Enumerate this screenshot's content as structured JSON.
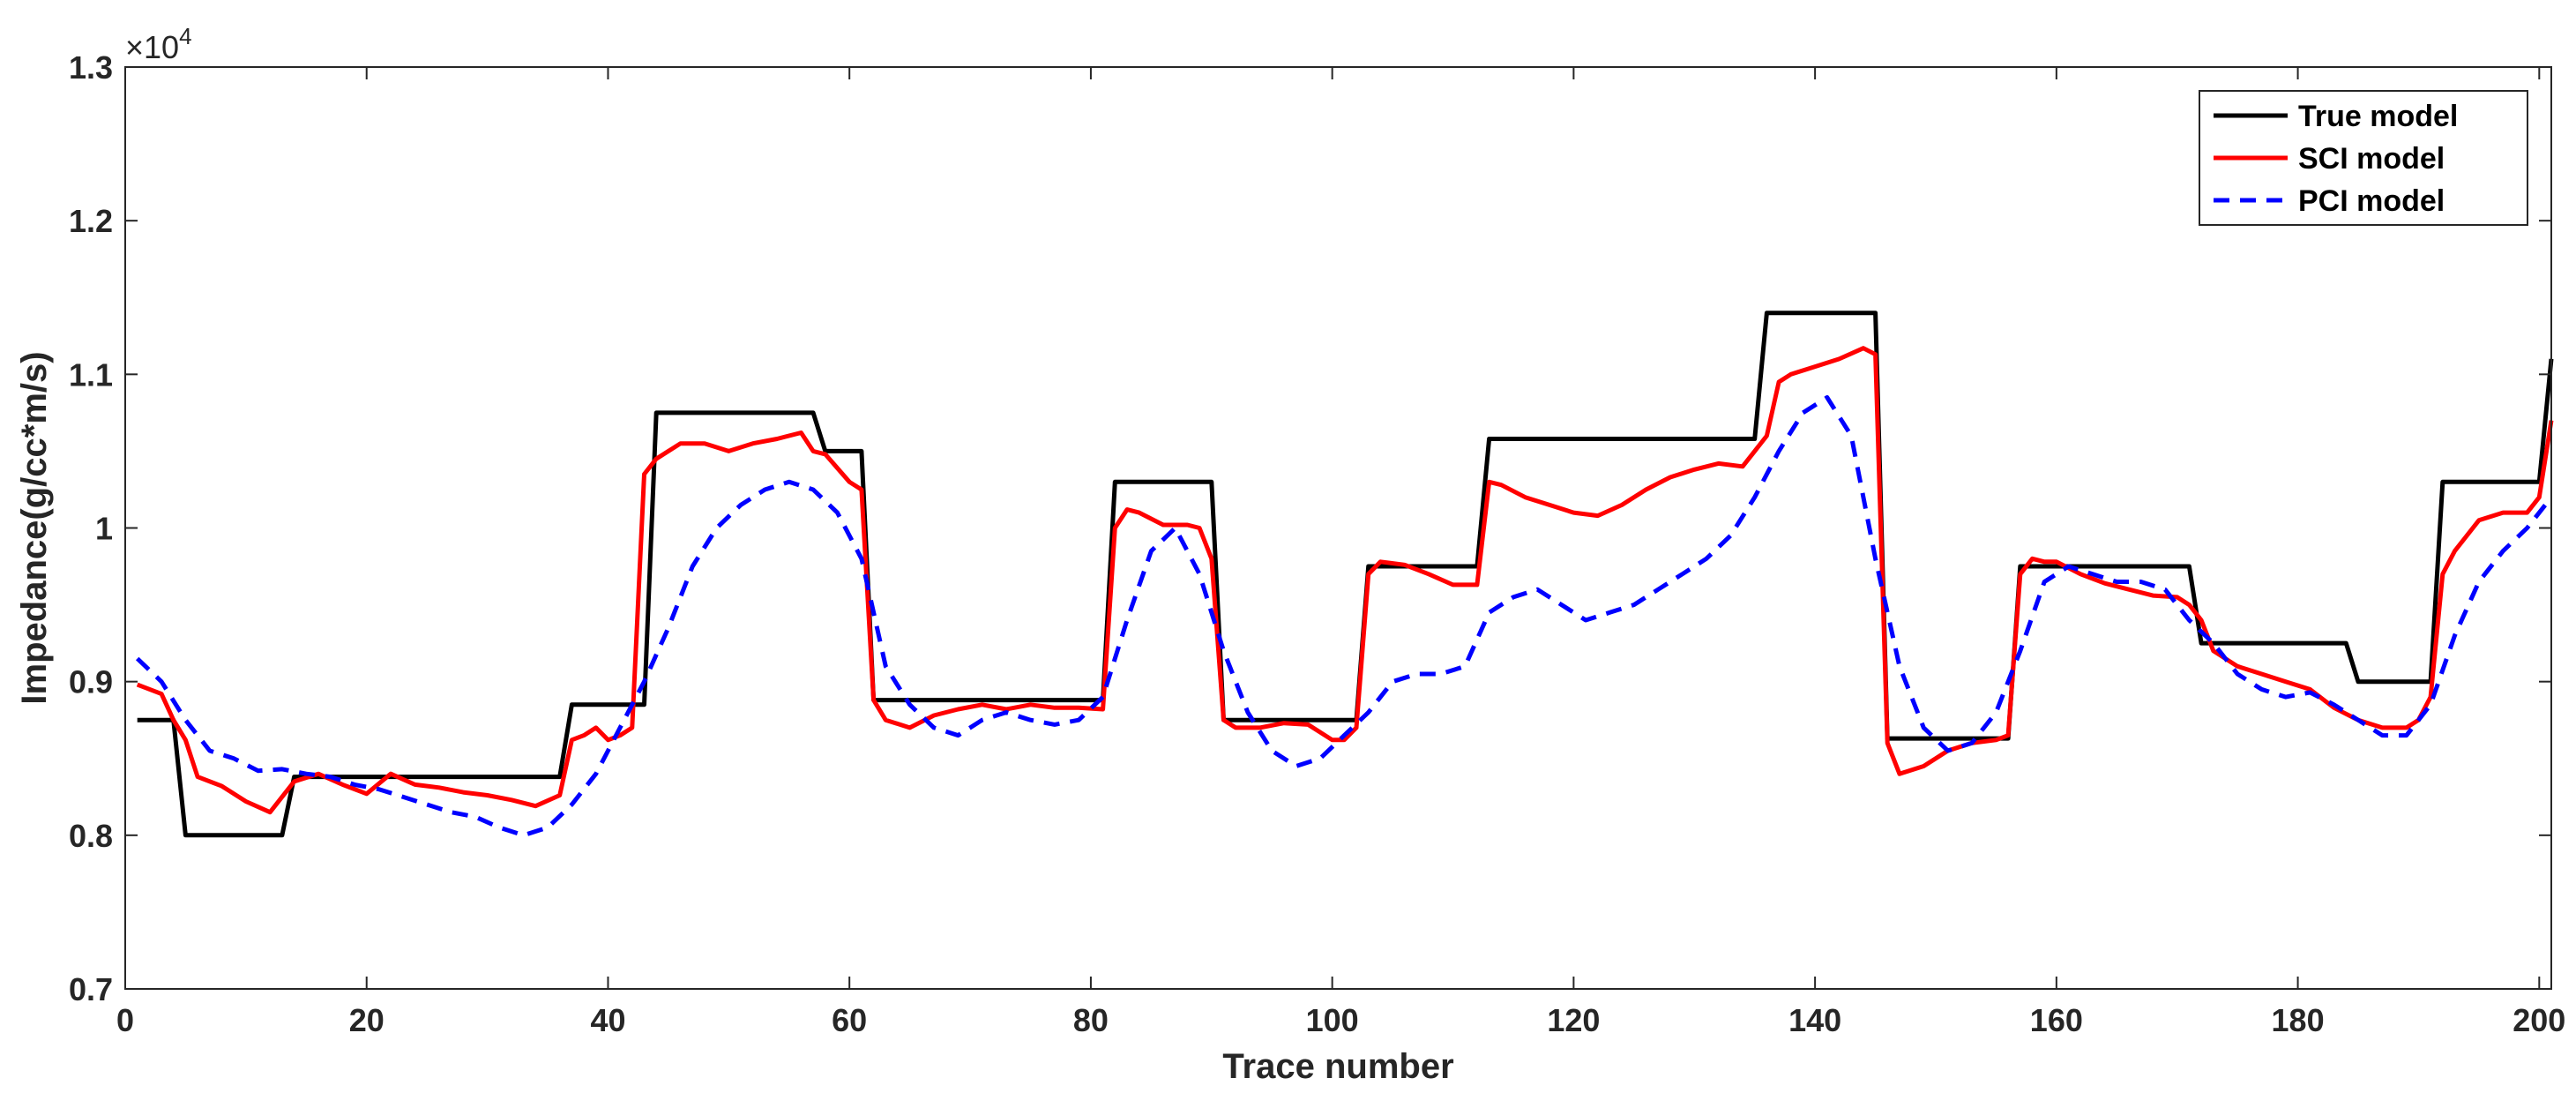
{
  "chart_data": {
    "type": "line",
    "xlabel": "Trace number",
    "ylabel": "Impedance(g/cc*m/s)",
    "exponent_label": "×10",
    "exponent_power": "4",
    "xlim": [
      0,
      201
    ],
    "ylim": [
      7000,
      13000
    ],
    "xticks": [
      0,
      20,
      40,
      60,
      80,
      100,
      120,
      140,
      160,
      180,
      200
    ],
    "xtick_labels": [
      "0",
      "20",
      "40",
      "60",
      "80",
      "100",
      "120",
      "140",
      "160",
      "180",
      "200"
    ],
    "yticks": [
      7000,
      8000,
      9000,
      10000,
      11000,
      12000,
      13000
    ],
    "ytick_labels": [
      "0.7",
      "0.8",
      "0.9",
      "1",
      "1.1",
      "1.2",
      "1.3"
    ],
    "grid": false,
    "legend_position": "top-right",
    "colors": {
      "true": "#000000",
      "sci": "#ff0000",
      "pci": "#0000ff"
    },
    "series": [
      {
        "name": "True model",
        "style": "solid",
        "x": [
          1,
          4,
          5,
          13,
          14,
          36,
          37,
          43,
          44,
          57,
          58,
          61,
          62,
          81,
          82,
          90,
          91,
          102,
          103,
          112,
          113,
          135,
          136,
          145,
          146,
          156,
          157,
          171,
          172,
          184,
          185,
          191,
          192,
          200,
          201
        ],
        "y": [
          8750,
          8750,
          8000,
          8000,
          8380,
          8380,
          8850,
          8850,
          10750,
          10750,
          10500,
          10500,
          8880,
          8880,
          10300,
          10300,
          8750,
          8750,
          9750,
          9750,
          10580,
          10580,
          11400,
          11400,
          8630,
          8630,
          9750,
          9750,
          9250,
          9250,
          9000,
          9000,
          10300,
          10300,
          11100
        ]
      },
      {
        "name": "SCI model",
        "style": "solid",
        "x": [
          1,
          3,
          4,
          5,
          6,
          8,
          10,
          12,
          14,
          16,
          18,
          20,
          22,
          24,
          26,
          28,
          30,
          32,
          34,
          36,
          37,
          38,
          39,
          40,
          41,
          42,
          43,
          44,
          45,
          46,
          48,
          50,
          52,
          54,
          56,
          57,
          58,
          60,
          61,
          62,
          63,
          65,
          67,
          69,
          71,
          73,
          75,
          77,
          79,
          81,
          82,
          83,
          84,
          86,
          88,
          89,
          90,
          91,
          92,
          94,
          96,
          98,
          100,
          101,
          102,
          103,
          104,
          106,
          108,
          110,
          112,
          113,
          114,
          116,
          118,
          120,
          122,
          124,
          126,
          128,
          130,
          132,
          134,
          135,
          136,
          137,
          138,
          140,
          142,
          144,
          145,
          146,
          147,
          149,
          151,
          153,
          155,
          156,
          157,
          158,
          159,
          160,
          162,
          164,
          166,
          168,
          170,
          171,
          172,
          173,
          175,
          177,
          179,
          181,
          183,
          185,
          187,
          189,
          190,
          191,
          192,
          193,
          195,
          197,
          199,
          200,
          201
        ],
        "y": [
          8980,
          8920,
          8750,
          8620,
          8380,
          8320,
          8220,
          8150,
          8350,
          8400,
          8330,
          8270,
          8400,
          8330,
          8310,
          8280,
          8260,
          8230,
          8190,
          8260,
          8620,
          8650,
          8700,
          8620,
          8650,
          8700,
          10350,
          10450,
          10500,
          10550,
          10550,
          10500,
          10550,
          10580,
          10620,
          10500,
          10480,
          10300,
          10250,
          8880,
          8750,
          8700,
          8780,
          8820,
          8850,
          8820,
          8850,
          8830,
          8830,
          8820,
          10000,
          10120,
          10100,
          10020,
          10020,
          10000,
          9800,
          8750,
          8700,
          8700,
          8730,
          8720,
          8620,
          8620,
          8700,
          9700,
          9780,
          9760,
          9700,
          9630,
          9630,
          10300,
          10280,
          10200,
          10150,
          10100,
          10080,
          10150,
          10250,
          10330,
          10380,
          10420,
          10400,
          10500,
          10600,
          10950,
          11000,
          11050,
          11100,
          11170,
          11130,
          8600,
          8400,
          8450,
          8550,
          8600,
          8620,
          8650,
          9700,
          9800,
          9780,
          9780,
          9700,
          9640,
          9600,
          9560,
          9550,
          9500,
          9400,
          9200,
          9100,
          9050,
          9000,
          8950,
          8830,
          8750,
          8700,
          8700,
          8750,
          8900,
          9700,
          9850,
          10050,
          10100,
          10100,
          10200,
          10700
        ]
      },
      {
        "name": "PCI model",
        "style": "dashed",
        "x": [
          1,
          3,
          5,
          7,
          9,
          11,
          13,
          15,
          17,
          19,
          21,
          23,
          25,
          27,
          29,
          31,
          33,
          35,
          37,
          39,
          41,
          43,
          45,
          47,
          49,
          51,
          53,
          55,
          57,
          59,
          61,
          63,
          65,
          67,
          69,
          71,
          73,
          75,
          77,
          79,
          81,
          83,
          85,
          87,
          89,
          91,
          93,
          95,
          97,
          99,
          101,
          103,
          105,
          107,
          109,
          111,
          113,
          115,
          117,
          119,
          121,
          123,
          125,
          127,
          129,
          131,
          133,
          135,
          137,
          139,
          141,
          143,
          145,
          147,
          149,
          151,
          153,
          155,
          157,
          159,
          161,
          163,
          165,
          167,
          169,
          171,
          173,
          175,
          177,
          179,
          181,
          183,
          185,
          187,
          189,
          191,
          193,
          195,
          197,
          199,
          201
        ],
        "y": [
          9150,
          9000,
          8750,
          8550,
          8500,
          8420,
          8430,
          8400,
          8380,
          8330,
          8300,
          8250,
          8200,
          8150,
          8120,
          8050,
          8000,
          8050,
          8200,
          8400,
          8700,
          9000,
          9350,
          9750,
          10000,
          10150,
          10250,
          10300,
          10250,
          10100,
          9800,
          9100,
          8850,
          8700,
          8650,
          8750,
          8800,
          8750,
          8720,
          8750,
          8900,
          9400,
          9850,
          10000,
          9700,
          9200,
          8800,
          8550,
          8450,
          8500,
          8650,
          8800,
          9000,
          9050,
          9050,
          9100,
          9450,
          9550,
          9600,
          9500,
          9400,
          9450,
          9500,
          9600,
          9700,
          9800,
          9950,
          10200,
          10500,
          10750,
          10850,
          10600,
          9800,
          9100,
          8700,
          8550,
          8600,
          8800,
          9200,
          9650,
          9750,
          9700,
          9650,
          9650,
          9600,
          9400,
          9250,
          9050,
          8950,
          8900,
          8930,
          8850,
          8750,
          8650,
          8650,
          8850,
          9300,
          9650,
          9850,
          10000,
          10200
        ]
      }
    ]
  }
}
